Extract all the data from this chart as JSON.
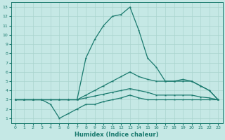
{
  "xlabel": "Humidex (Indice chaleur)",
  "xlim": [
    -0.5,
    23.5
  ],
  "ylim": [
    0.5,
    13.5
  ],
  "xticks": [
    0,
    1,
    2,
    3,
    4,
    5,
    6,
    7,
    8,
    9,
    10,
    11,
    12,
    13,
    14,
    15,
    16,
    17,
    18,
    19,
    20,
    21,
    22,
    23
  ],
  "yticks": [
    1,
    2,
    3,
    4,
    5,
    6,
    7,
    8,
    9,
    10,
    11,
    12,
    13
  ],
  "background_color": "#c5e8e5",
  "grid_color": "#aad4cf",
  "line_color": "#1a7a6e",
  "curves": [
    {
      "x": [
        0,
        1,
        2,
        3,
        4,
        5,
        6,
        7,
        8,
        9,
        10,
        11,
        12,
        13,
        14,
        15,
        16,
        17,
        18,
        19,
        20,
        21,
        22,
        23
      ],
      "y": [
        3,
        3,
        3,
        3,
        3,
        3,
        3,
        3,
        7.5,
        9.5,
        11,
        12,
        12.2,
        13,
        10.5,
        7.5,
        6.5,
        5,
        5,
        5,
        5,
        4.5,
        4,
        3
      ]
    },
    {
      "x": [
        0,
        1,
        2,
        3,
        4,
        5,
        6,
        7,
        8,
        9,
        10,
        11,
        12,
        13,
        14,
        15,
        16,
        17,
        18,
        19,
        20,
        21,
        22,
        23
      ],
      "y": [
        3,
        3,
        3,
        3,
        3,
        3,
        3,
        3,
        3.5,
        4,
        4.5,
        5,
        5.5,
        6,
        5.5,
        5.2,
        5,
        5,
        5,
        5.2,
        5,
        4.5,
        4,
        3
      ]
    },
    {
      "x": [
        0,
        1,
        2,
        3,
        4,
        5,
        6,
        7,
        8,
        9,
        10,
        11,
        12,
        13,
        14,
        15,
        16,
        17,
        18,
        19,
        20,
        21,
        22,
        23
      ],
      "y": [
        3,
        3,
        3,
        3,
        3,
        3,
        3,
        3,
        3.2,
        3.4,
        3.6,
        3.8,
        4,
        4.2,
        4,
        3.8,
        3.5,
        3.5,
        3.5,
        3.5,
        3.5,
        3.3,
        3.2,
        3
      ]
    },
    {
      "x": [
        0,
        1,
        2,
        3,
        4,
        5,
        6,
        7,
        8,
        9,
        10,
        11,
        12,
        13,
        14,
        15,
        16,
        17,
        18,
        19,
        20,
        21,
        22,
        23
      ],
      "y": [
        3,
        3,
        3,
        3,
        2.5,
        1,
        1.5,
        2,
        2.5,
        2.5,
        2.8,
        3,
        3.2,
        3.5,
        3.2,
        3,
        3,
        3,
        3,
        3,
        3,
        3,
        3,
        3
      ]
    }
  ]
}
